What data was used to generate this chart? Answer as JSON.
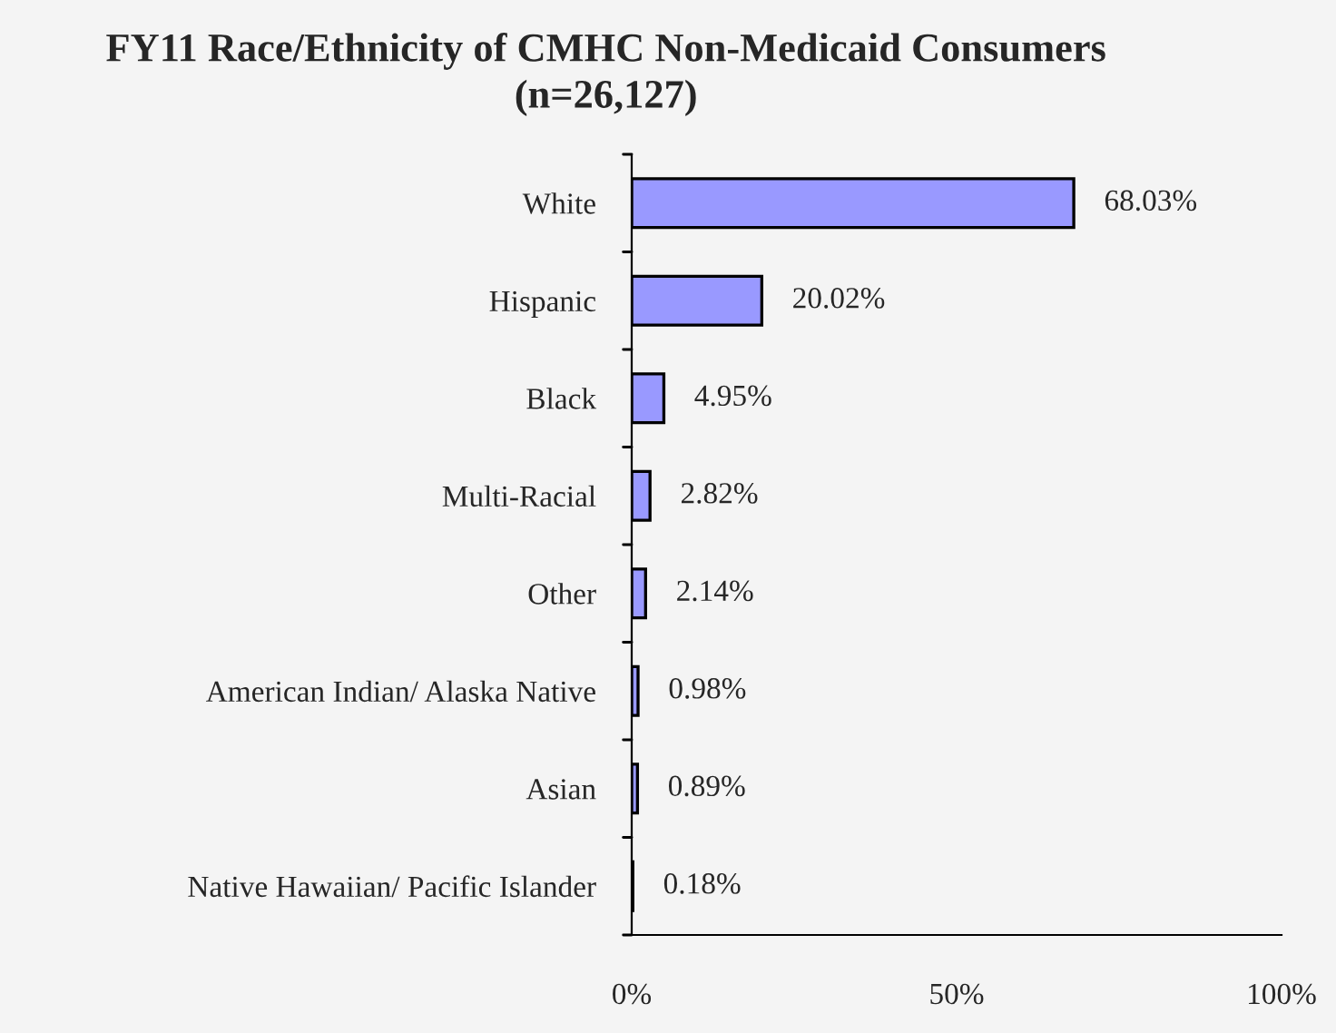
{
  "chart_data": {
    "type": "bar",
    "orientation": "horizontal",
    "title": "FY11 Race/Ethnicity of CMHC Non-Medicaid Consumers\n(n=26,127)",
    "categories": [
      "White",
      "Hispanic",
      "Black",
      "Multi-Racial",
      "Other",
      "American Indian/ Alaska Native",
      "Asian",
      "Native Hawaiian/ Pacific Islander"
    ],
    "values": [
      68.03,
      20.02,
      4.95,
      2.82,
      2.14,
      0.98,
      0.89,
      0.18
    ],
    "value_labels": [
      "68.03%",
      "20.02%",
      "4.95%",
      "2.82%",
      "2.14%",
      "0.98%",
      "0.89%",
      "0.18%"
    ],
    "color": "#9999ff",
    "xlim": [
      0,
      100
    ],
    "xticks": [
      {
        "value": 0,
        "label": "0%"
      },
      {
        "value": 50,
        "label": "50%"
      },
      {
        "value": 100,
        "label": "100%"
      }
    ],
    "grid": false,
    "legend": false
  }
}
